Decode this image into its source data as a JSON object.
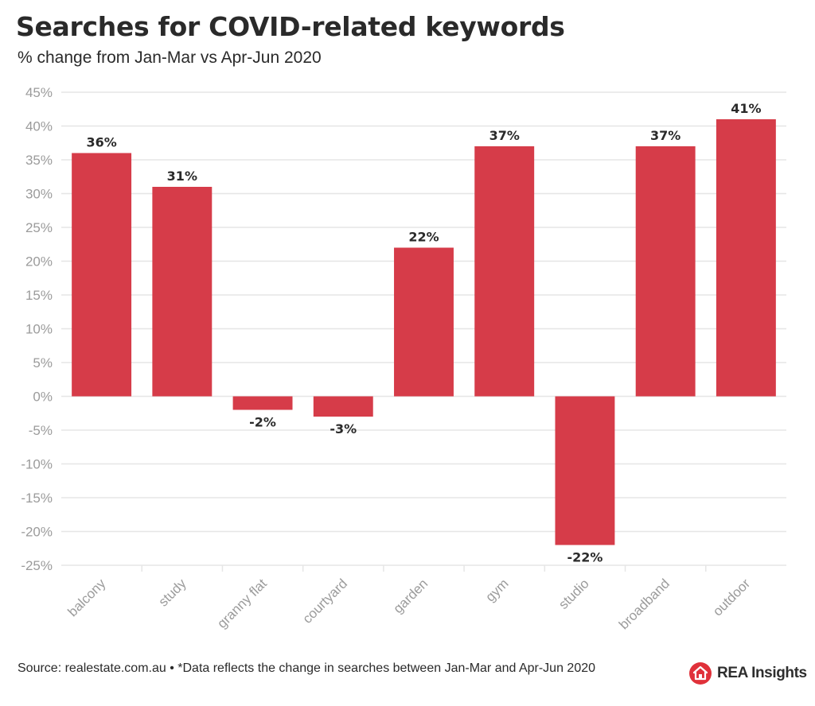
{
  "title": "Searches for COVID-related keywords",
  "subtitle": "% change from Jan-Mar vs Apr-Jun 2020",
  "footer": {
    "source": "Source: realestate.com.au • *Data reflects the change in searches between Jan-Mar and Apr-Jun 2020"
  },
  "brand": {
    "name": "REA Insights",
    "icon": "house-icon",
    "color": "#e0313a"
  },
  "chart_data": {
    "type": "bar",
    "title": "Searches for COVID-related keywords",
    "subtitle": "% change from Jan-Mar vs Apr-Jun 2020",
    "categories": [
      "balcony",
      "study",
      "granny flat",
      "courtyard",
      "garden",
      "gym",
      "studio",
      "broadband",
      "outdoor"
    ],
    "values": [
      36,
      31,
      -2,
      -3,
      22,
      37,
      -22,
      37,
      41
    ],
    "value_labels": [
      "36%",
      "31%",
      "-2%",
      "-3%",
      "22%",
      "37%",
      "-22%",
      "37%",
      "41%"
    ],
    "yticks": [
      45,
      40,
      35,
      30,
      25,
      20,
      15,
      10,
      5,
      0,
      -5,
      -10,
      -15,
      -20,
      -25
    ],
    "ytick_labels": [
      "45%",
      "40%",
      "35%",
      "30%",
      "25%",
      "20%",
      "15%",
      "10%",
      "5%",
      "0%",
      "-5%",
      "-10%",
      "-15%",
      "-20%",
      "-25%"
    ],
    "ylim": [
      -25,
      45
    ],
    "xlabel": "",
    "ylabel": "",
    "grid": true,
    "bar_color": "#d63c49",
    "grid_color": "#e6e6e6"
  }
}
